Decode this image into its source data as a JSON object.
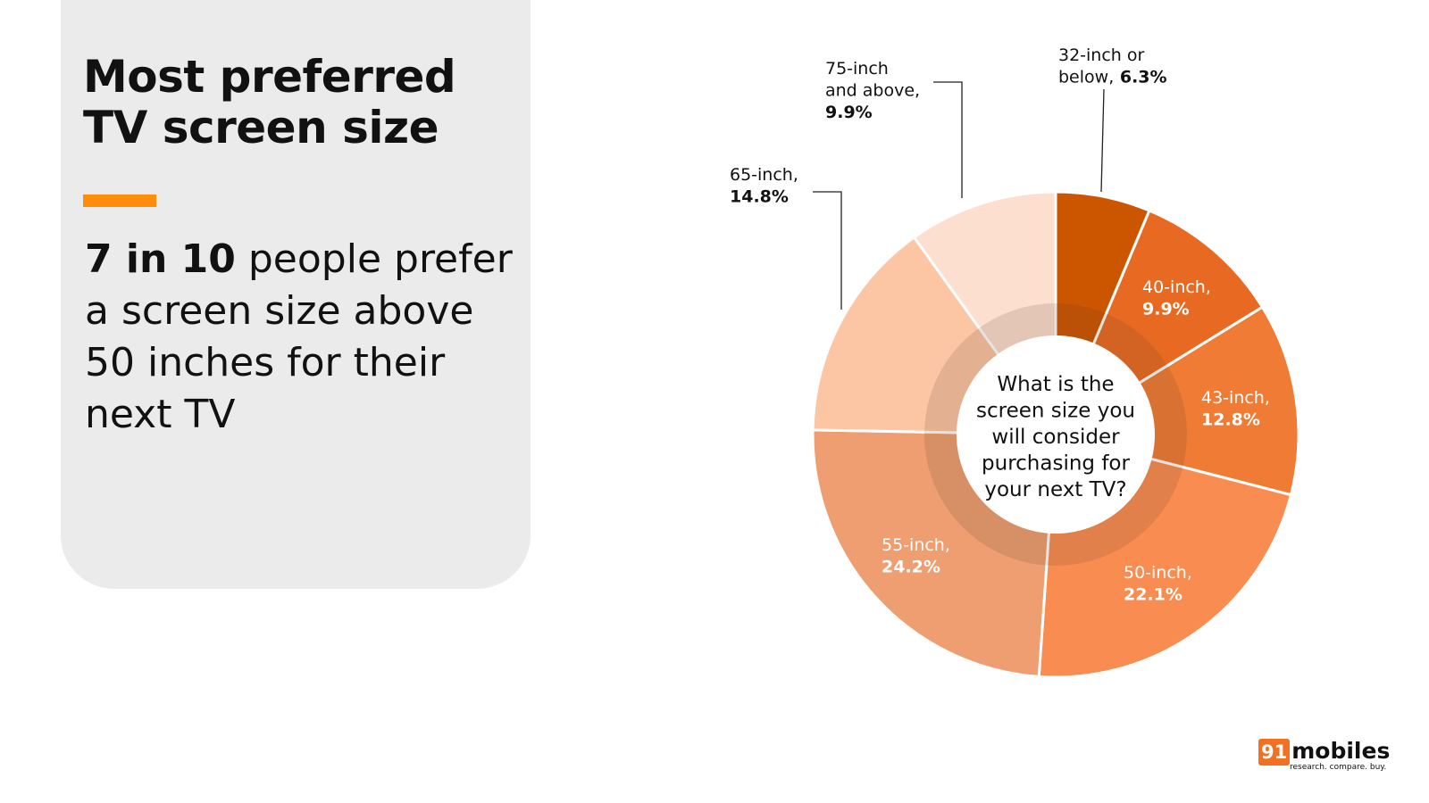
{
  "panel": {
    "title": "Most preferred TV screen size",
    "subtitle_bold": "7 in 10",
    "subtitle_rest": " people prefer a screen size above 50 inches for their next TV",
    "accent_color": "#ff8c0a"
  },
  "chart_data": {
    "type": "pie",
    "donut": true,
    "center_label": "What is the screen size you will consider purchasing for your next TV?",
    "start": "12 o'clock, clockwise",
    "slices": [
      {
        "label": "32-inch or below,",
        "value": 6.3,
        "value_label": "6.3%",
        "color": "#cc5500"
      },
      {
        "label": "40-inch,",
        "value": 9.9,
        "value_label": "9.9%",
        "color": "#e86a22"
      },
      {
        "label": "43-inch,",
        "value": 12.8,
        "value_label": "12.8%",
        "color": "#f07b35"
      },
      {
        "label": "50-inch,",
        "value": 22.1,
        "value_label": "22.1%",
        "color": "#f98c50"
      },
      {
        "label": "55-inch,",
        "value": 24.2,
        "value_label": "24.2%",
        "color": "#ee9e70"
      },
      {
        "label": "65-inch,",
        "value": 14.8,
        "value_label": "14.8%",
        "color": "#fcc6a4"
      },
      {
        "label": "75-inch and above,",
        "value": 9.9,
        "value_label": "9.9%",
        "color": "#fddfcf"
      }
    ]
  },
  "logo": {
    "number": "91",
    "name": "mobiles",
    "tagline": "research. compare. buy."
  }
}
